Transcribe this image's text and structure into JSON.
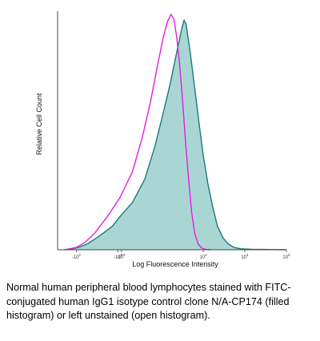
{
  "chart_data": {
    "type": "area",
    "title": "",
    "xlabel": "Log Fluorescence Intensity",
    "ylabel": "Relative Cell Count",
    "x_scale": "biexponential",
    "xlim": [
      -300,
      100000
    ],
    "ylim": [
      0,
      1
    ],
    "x_ticks": [
      {
        "label": "-10",
        "sup": "2",
        "value": -100
      },
      {
        "label": "-10",
        "sup": "0",
        "value": -1
      },
      {
        "label": "10",
        "sup": "0",
        "value": 1
      },
      {
        "label": "10",
        "sup": "3",
        "value": 1000
      },
      {
        "label": "10",
        "sup": "4",
        "value": 10000
      },
      {
        "label": "10",
        "sup": "5",
        "value": 100000
      }
    ],
    "grid": false,
    "legend": "none",
    "series": [
      {
        "style": "filled",
        "color": "#1a7a7a",
        "fill": "#a9d6d3",
        "points": [
          [
            -200,
            0.0
          ],
          [
            -120,
            0.005
          ],
          [
            -80,
            0.012
          ],
          [
            -50,
            0.025
          ],
          [
            -30,
            0.045
          ],
          [
            -15,
            0.07
          ],
          [
            -5,
            0.1
          ],
          [
            0,
            0.14
          ],
          [
            10,
            0.2
          ],
          [
            30,
            0.3
          ],
          [
            60,
            0.44
          ],
          [
            100,
            0.58
          ],
          [
            150,
            0.7
          ],
          [
            200,
            0.8
          ],
          [
            250,
            0.88
          ],
          [
            300,
            0.94
          ],
          [
            340,
            0.975
          ],
          [
            380,
            0.96
          ],
          [
            420,
            0.91
          ],
          [
            480,
            0.84
          ],
          [
            550,
            0.76
          ],
          [
            650,
            0.66
          ],
          [
            800,
            0.53
          ],
          [
            1000,
            0.4
          ],
          [
            1300,
            0.28
          ],
          [
            1700,
            0.18
          ],
          [
            2200,
            0.1
          ],
          [
            3000,
            0.05
          ],
          [
            4000,
            0.025
          ],
          [
            5500,
            0.01
          ],
          [
            8000,
            0.004
          ],
          [
            15000,
            0.002
          ],
          [
            100000,
            0.0
          ]
        ]
      },
      {
        "style": "open",
        "color": "#e020e0",
        "points": [
          [
            -200,
            0.0
          ],
          [
            -100,
            0.01
          ],
          [
            -60,
            0.03
          ],
          [
            -30,
            0.07
          ],
          [
            -10,
            0.14
          ],
          [
            0,
            0.22
          ],
          [
            10,
            0.33
          ],
          [
            25,
            0.48
          ],
          [
            45,
            0.63
          ],
          [
            70,
            0.78
          ],
          [
            100,
            0.9
          ],
          [
            130,
            0.97
          ],
          [
            160,
            1.0
          ],
          [
            190,
            0.98
          ],
          [
            220,
            0.91
          ],
          [
            260,
            0.8
          ],
          [
            310,
            0.64
          ],
          [
            370,
            0.46
          ],
          [
            440,
            0.3
          ],
          [
            520,
            0.16
          ],
          [
            620,
            0.07
          ],
          [
            750,
            0.025
          ],
          [
            900,
            0.008
          ],
          [
            1100,
            0.002
          ],
          [
            1500,
            0.0
          ]
        ]
      }
    ]
  },
  "caption": "Normal human peripheral blood lymphocytes stained with FITC-conjugated human IgG1 isotype control clone N/A-CP174 (filled histogram) or left unstained (open histogram)."
}
